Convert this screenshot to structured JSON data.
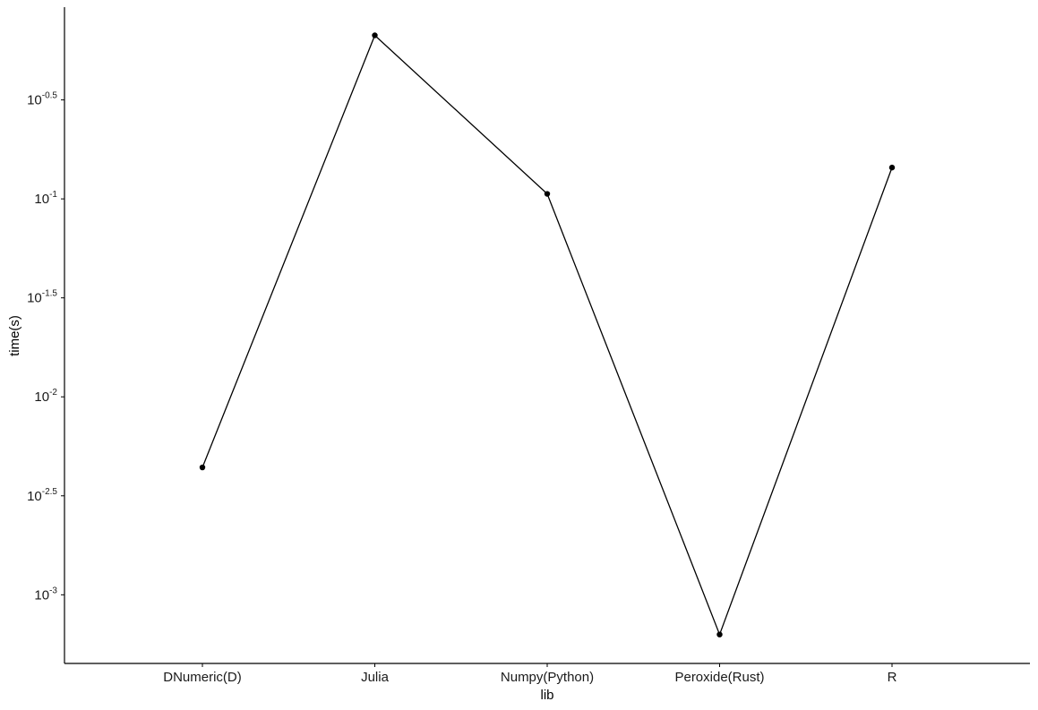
{
  "chart_data": {
    "type": "line",
    "title": "",
    "xlabel": "lib",
    "ylabel": "time(s)",
    "y_scale": "log10",
    "y_tick_base": "10",
    "y_tick_exponents": [
      "-0.5",
      "-1",
      "-1.5",
      "-2",
      "-2.5",
      "-3"
    ],
    "grid": false,
    "legend": "none",
    "categories": [
      "DNumeric(D)",
      "Julia",
      "Numpy(Python)",
      "Peroxide(Rust)",
      "R"
    ],
    "series": [
      {
        "values": [
          0.0044,
          0.67,
          0.106,
          0.00063,
          0.144
        ]
      }
    ],
    "ylim": [
      0.00045,
      0.93
    ],
    "colors": {
      "line": "#000000",
      "point": "#000000",
      "axis": "#000000"
    }
  }
}
